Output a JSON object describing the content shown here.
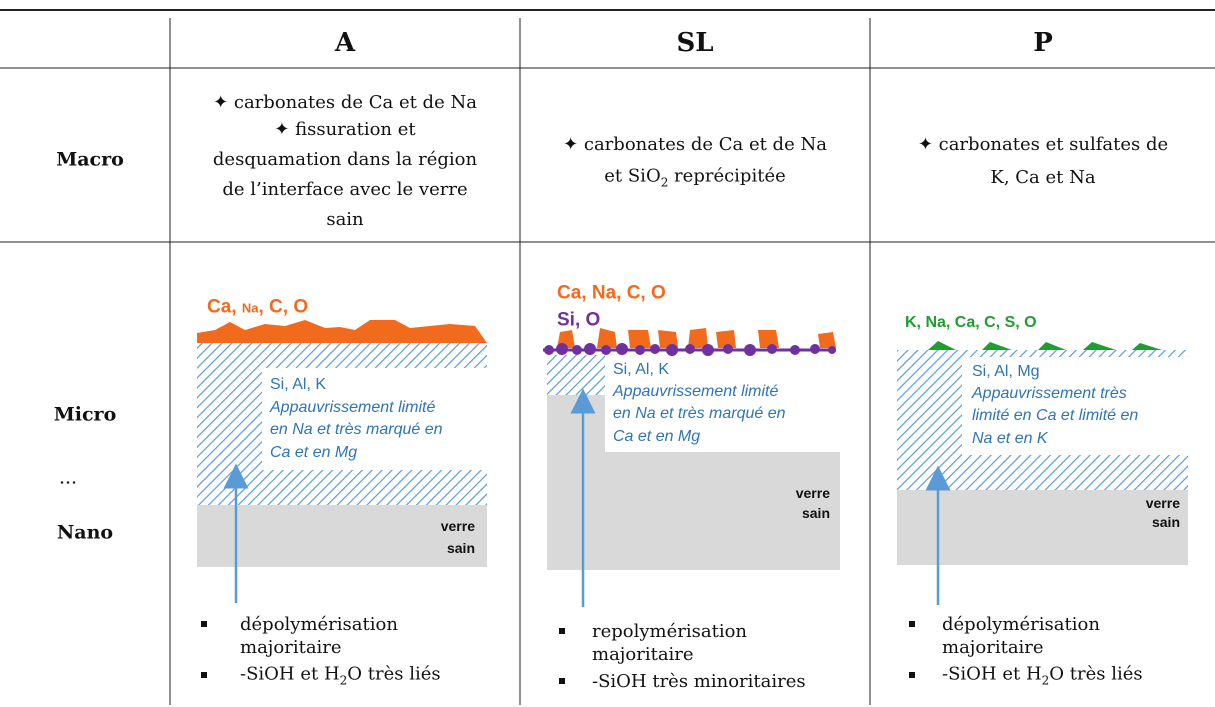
{
  "table": {
    "headers": [
      "A",
      "SL",
      "P"
    ],
    "row_labels": [
      "Macro",
      "Micro",
      "...",
      "Nano"
    ],
    "macro": [
      [
        "✦ carbonates de Ca et de Na",
        "✦ fissuration et",
        "desquamation dans la région",
        "de l’interface avec le verre",
        "sain"
      ],
      [
        "✦ carbonates de Ca et de Na",
        [
          "et SiO",
          "2",
          " reprécipitée"
        ]
      ],
      [
        "✦ carbonates et sulfates de",
        "K, Ca et Na"
      ]
    ],
    "diagrams": [
      {
        "deposit": [
          [
            "Ca, ",
            "Na",
            ", C, O"
          ]
        ],
        "layer": "Si, Al, K",
        "note": [
          "Appauvrissement limité",
          "en Na et très marqué en",
          "Ca et en Mg"
        ],
        "glass": [
          "verre",
          "sain"
        ],
        "bullets": [
          [
            "dépolymérisation",
            "majoritaire"
          ],
          [
            [
              "-SiOH et H",
              "2",
              "O très liés"
            ]
          ]
        ]
      },
      {
        "deposit": [
          "Ca, Na, C, O",
          "Si, O"
        ],
        "layer": "Si, Al, K",
        "note": [
          "Appauvrissement limité",
          "en Na et très marqué en",
          "Ca et en Mg"
        ],
        "glass": [
          "verre",
          "sain"
        ],
        "bullets": [
          [
            "repolymérisation",
            "majoritaire"
          ],
          [
            "-SiOH très minoritaires"
          ]
        ]
      },
      {
        "deposit": [
          "K, Na, Ca, C, S, O"
        ],
        "layer": "Si, Al, Mg",
        "note": [
          "Appauvrissement très",
          "limité en Ca et limité en",
          "Na et en K"
        ],
        "glass": [
          "verre",
          "sain"
        ],
        "bullets": [
          [
            "dépolymérisation",
            "majoritaire"
          ],
          [
            [
              "-SiOH et H",
              "2",
              "O très liés"
            ]
          ]
        ]
      }
    ]
  }
}
